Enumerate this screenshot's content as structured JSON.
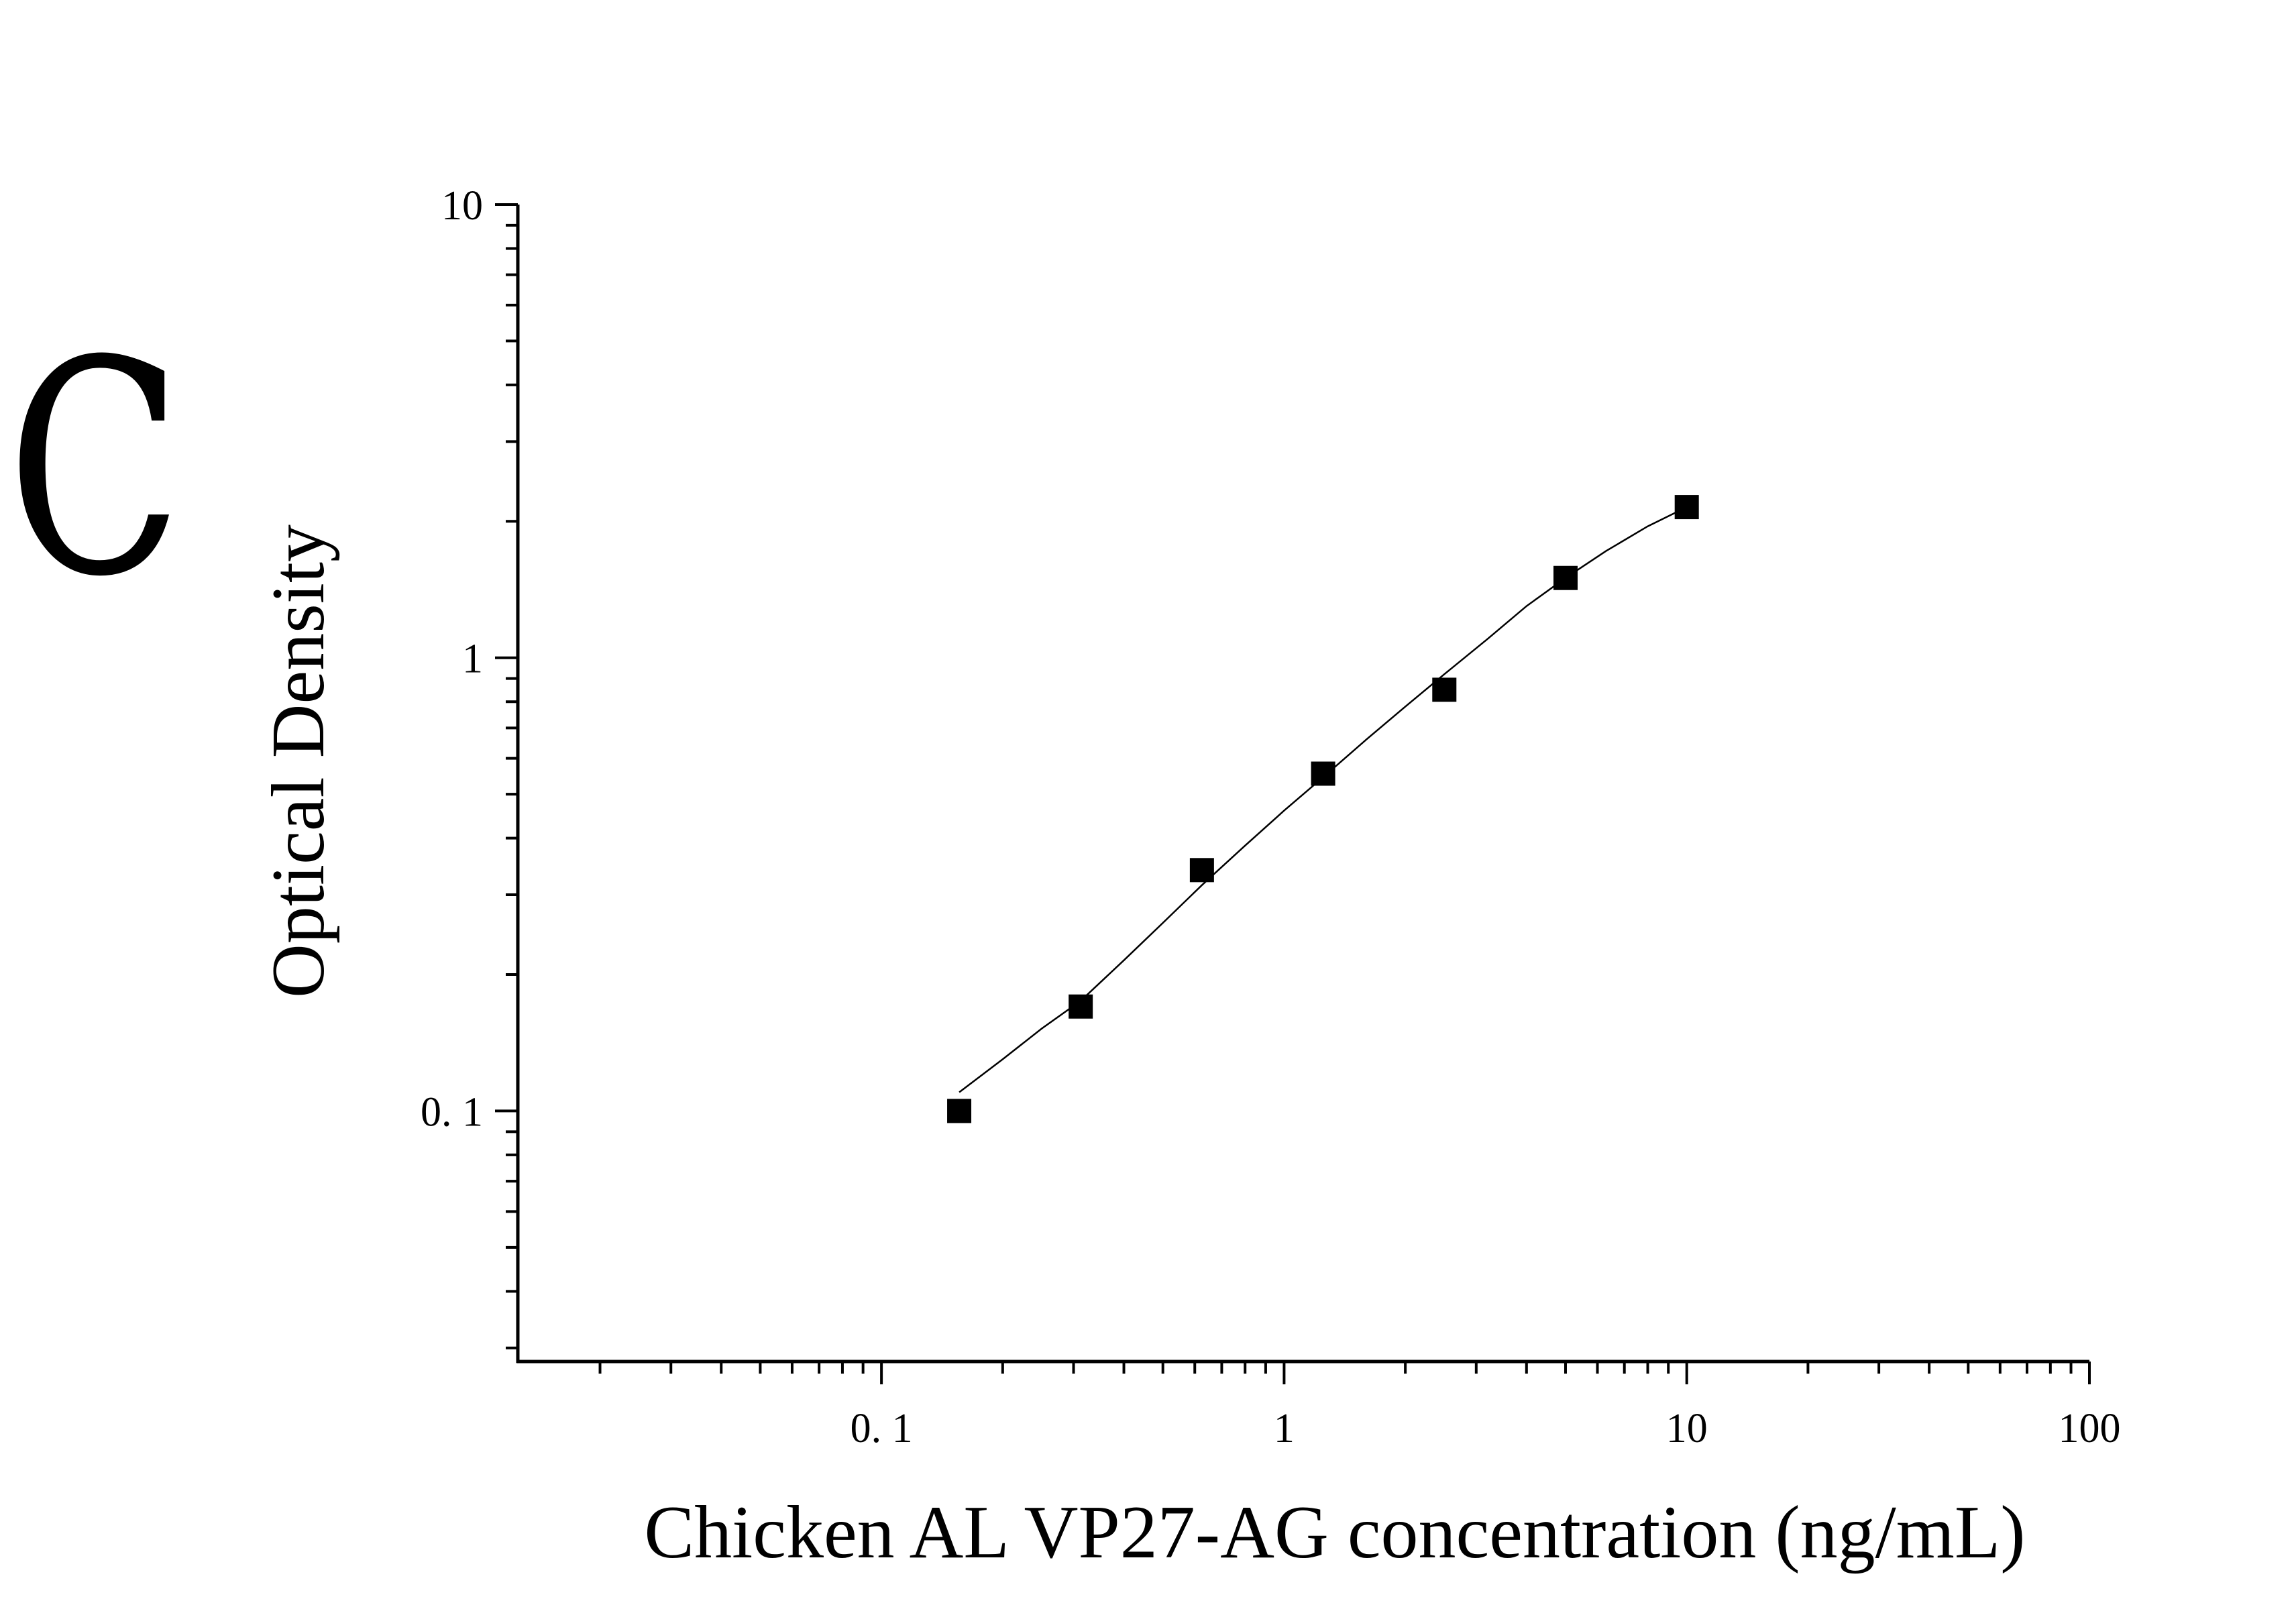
{
  "panel_label": "C",
  "chart_data": {
    "type": "scatter",
    "xlabel": "Chicken AL VP27-AG concentration (ng/mL)",
    "ylabel": "Optical Density",
    "x_scale": "log",
    "y_scale": "log",
    "xlim": [
      0.0125,
      100
    ],
    "ylim": [
      0.028,
      10
    ],
    "x_ticks": [
      0.1,
      1,
      10,
      100
    ],
    "x_tick_labels": [
      "0. 1",
      "1",
      "10",
      "100"
    ],
    "y_ticks": [
      0.1,
      1,
      10
    ],
    "y_tick_labels": [
      "0. 1",
      "1",
      "10"
    ],
    "grid": false,
    "series": [
      {
        "marker": "square",
        "color": "#000000",
        "x": [
          0.156,
          0.3125,
          0.625,
          1.25,
          2.5,
          5,
          10
        ],
        "y": [
          0.1,
          0.17,
          0.34,
          0.555,
          0.85,
          1.5,
          2.15
        ]
      }
    ],
    "fit_curve": {
      "color": "#000000",
      "x": [
        0.156,
        0.2,
        0.25,
        0.3125,
        0.4,
        0.5,
        0.625,
        0.8,
        1.0,
        1.25,
        1.6,
        2.0,
        2.5,
        3.2,
        4.0,
        5.0,
        6.3,
        8.0,
        10.0
      ],
      "y": [
        0.11,
        0.13,
        0.152,
        0.175,
        0.215,
        0.26,
        0.315,
        0.385,
        0.46,
        0.545,
        0.66,
        0.78,
        0.92,
        1.1,
        1.3,
        1.5,
        1.72,
        1.95,
        2.15
      ]
    }
  }
}
